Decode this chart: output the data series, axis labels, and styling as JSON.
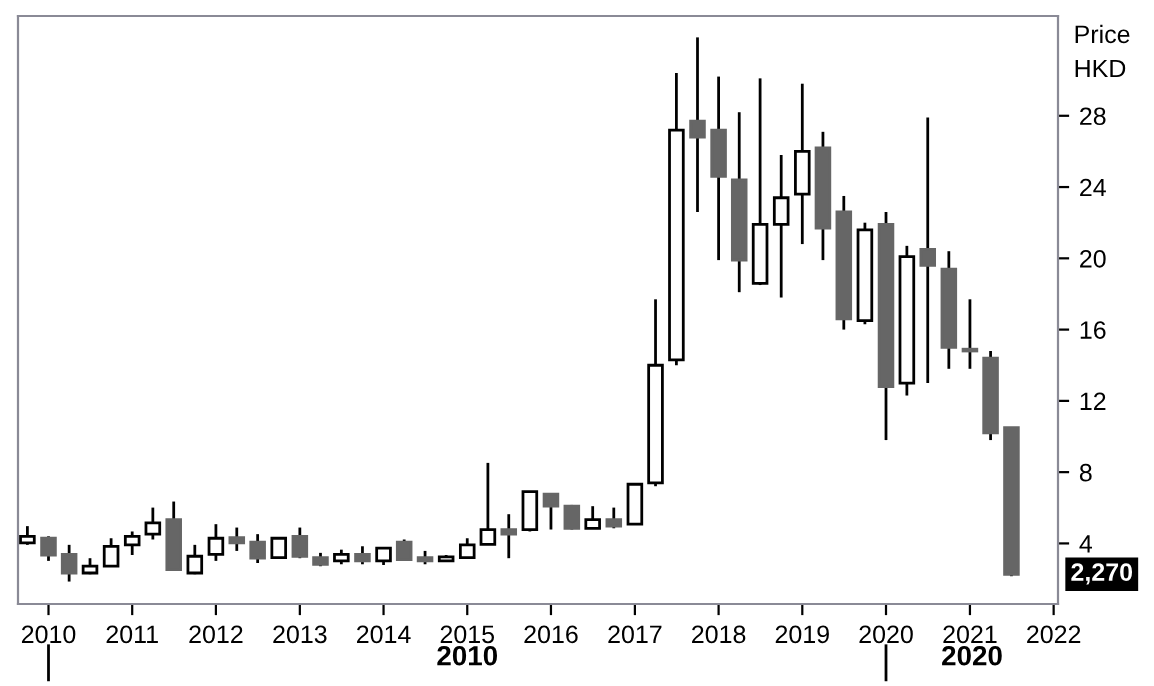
{
  "chart_data": {
    "type": "candlestick",
    "ylabel": "Price\nHKD",
    "x": [
      "2009-10",
      "2010-01",
      "2010-04",
      "2010-07",
      "2010-10",
      "2011-01",
      "2011-04",
      "2011-07",
      "2011-10",
      "2012-01",
      "2012-04",
      "2012-07",
      "2012-10",
      "2013-01",
      "2013-04",
      "2013-07",
      "2013-10",
      "2014-01",
      "2014-04",
      "2014-07",
      "2014-10",
      "2015-01",
      "2015-04",
      "2015-07",
      "2015-10",
      "2016-01",
      "2016-04",
      "2016-07",
      "2016-10",
      "2017-01",
      "2017-04",
      "2017-07",
      "2017-10",
      "2018-01",
      "2018-04",
      "2018-07",
      "2018-10",
      "2019-01",
      "2019-04",
      "2019-07",
      "2019-10",
      "2020-01",
      "2020-04",
      "2020-07",
      "2020-10",
      "2021-01",
      "2021-04",
      "2021-07"
    ],
    "ohlc": [
      [
        4.03,
        4.97,
        3.92,
        4.4
      ],
      [
        4.29,
        4.4,
        3.02,
        3.35
      ],
      [
        3.39,
        3.92,
        1.86,
        2.34
      ],
      [
        2.34,
        3.17,
        2.27,
        2.72
      ],
      [
        2.72,
        4.29,
        2.72,
        3.84
      ],
      [
        3.92,
        4.67,
        3.35,
        4.4
      ],
      [
        4.52,
        6.01,
        4.22,
        5.15
      ],
      [
        5.34,
        6.35,
        2.46,
        2.53
      ],
      [
        2.34,
        3.92,
        2.27,
        3.28
      ],
      [
        3.39,
        5.08,
        3.02,
        4.29
      ],
      [
        4.33,
        4.89,
        3.58,
        4.03
      ],
      [
        4.07,
        4.52,
        2.9,
        3.17
      ],
      [
        3.2,
        4.29,
        3.17,
        4.29
      ],
      [
        4.4,
        4.89,
        3.17,
        3.28
      ],
      [
        3.2,
        3.47,
        2.72,
        2.83
      ],
      [
        3.02,
        3.65,
        2.83,
        3.39
      ],
      [
        3.39,
        3.84,
        2.83,
        3.02
      ],
      [
        3.02,
        3.73,
        2.79,
        3.73
      ],
      [
        4.07,
        4.22,
        3.02,
        3.09
      ],
      [
        3.2,
        3.58,
        2.83,
        3.02
      ],
      [
        3.02,
        3.35,
        3.02,
        3.24
      ],
      [
        3.2,
        4.29,
        3.2,
        3.92
      ],
      [
        3.95,
        8.52,
        3.95,
        4.78
      ],
      [
        4.78,
        5.64,
        3.17,
        4.52
      ],
      [
        4.78,
        6.91,
        4.67,
        6.91
      ],
      [
        6.76,
        6.76,
        4.78,
        6.09
      ],
      [
        6.09,
        6.16,
        4.78,
        4.85
      ],
      [
        4.85,
        6.09,
        4.85,
        5.34
      ],
      [
        5.34,
        6.01,
        4.85,
        4.97
      ],
      [
        5.08,
        7.32,
        5.08,
        7.32
      ],
      [
        7.4,
        17.7,
        7.21,
        14.0
      ],
      [
        14.3,
        30.4,
        14.0,
        27.2
      ],
      [
        27.7,
        32.4,
        22.6,
        26.8
      ],
      [
        27.2,
        30.2,
        19.9,
        24.6
      ],
      [
        24.4,
        28.2,
        18.1,
        19.9
      ],
      [
        18.6,
        30.1,
        18.5,
        21.9
      ],
      [
        21.9,
        25.8,
        17.8,
        23.4
      ],
      [
        23.6,
        29.8,
        20.8,
        26.0
      ],
      [
        26.2,
        27.1,
        19.9,
        21.7
      ],
      [
        22.6,
        23.5,
        16.0,
        16.6
      ],
      [
        16.5,
        22.0,
        16.3,
        21.6
      ],
      [
        21.9,
        22.6,
        9.8,
        12.8
      ],
      [
        13.0,
        20.7,
        12.3,
        20.1
      ],
      [
        20.5,
        27.9,
        13.0,
        19.6
      ],
      [
        19.4,
        20.4,
        13.8,
        15.0
      ],
      [
        14.9,
        17.7,
        13.8,
        14.8
      ],
      [
        14.4,
        14.8,
        9.8,
        10.2
      ],
      [
        10.5,
        10.5,
        2.16,
        2.27
      ]
    ],
    "colors": [
      "#ffffff",
      "#666666",
      "#666666",
      "#ffffff",
      "#ffffff",
      "#ffffff",
      "#ffffff",
      "#666666",
      "#ffffff",
      "#ffffff",
      "#666666",
      "#666666",
      "#ffffff",
      "#666666",
      "#666666",
      "#ffffff",
      "#666666",
      "#ffffff",
      "#666666",
      "#666666",
      "#ffffff",
      "#ffffff",
      "#ffffff",
      "#666666",
      "#ffffff",
      "#666666",
      "#666666",
      "#ffffff",
      "#666666",
      "#ffffff",
      "#ffffff",
      "#ffffff",
      "#666666",
      "#666666",
      "#666666",
      "#ffffff",
      "#ffffff",
      "#ffffff",
      "#666666",
      "#666666",
      "#ffffff",
      "#666666",
      "#ffffff",
      "#666666",
      "#666666",
      "#666666",
      "#666666",
      "#666666"
    ],
    "ylim": [
      0.6,
      33.6
    ],
    "yticks": [
      4,
      8,
      12,
      16,
      20,
      24,
      28
    ],
    "xlim": [
      "2009-08-21",
      "2022-01-20"
    ],
    "xticks": [
      {
        "value": "2010-01-01",
        "label": "2010"
      },
      {
        "value": "2011-01-01",
        "label": "2011"
      },
      {
        "value": "2012-01-01",
        "label": "2012"
      },
      {
        "value": "2013-01-01",
        "label": "2013"
      },
      {
        "value": "2014-01-01",
        "label": "2014"
      },
      {
        "value": "2015-01-01",
        "label": "2015"
      },
      {
        "value": "2016-01-01",
        "label": "2016"
      },
      {
        "value": "2017-01-01",
        "label": "2017"
      },
      {
        "value": "2018-01-01",
        "label": "2018"
      },
      {
        "value": "2019-01-01",
        "label": "2019"
      },
      {
        "value": "2020-01-01",
        "label": "2020"
      },
      {
        "value": "2021-01-01",
        "label": "2021"
      },
      {
        "value": "2022-01-01",
        "label": "2022"
      }
    ],
    "annotations": [
      {
        "text": "2,270",
        "x": "2021-07",
        "y": 2.27
      },
      "2010",
      "2020"
    ],
    "grid": false,
    "legend": false
  }
}
